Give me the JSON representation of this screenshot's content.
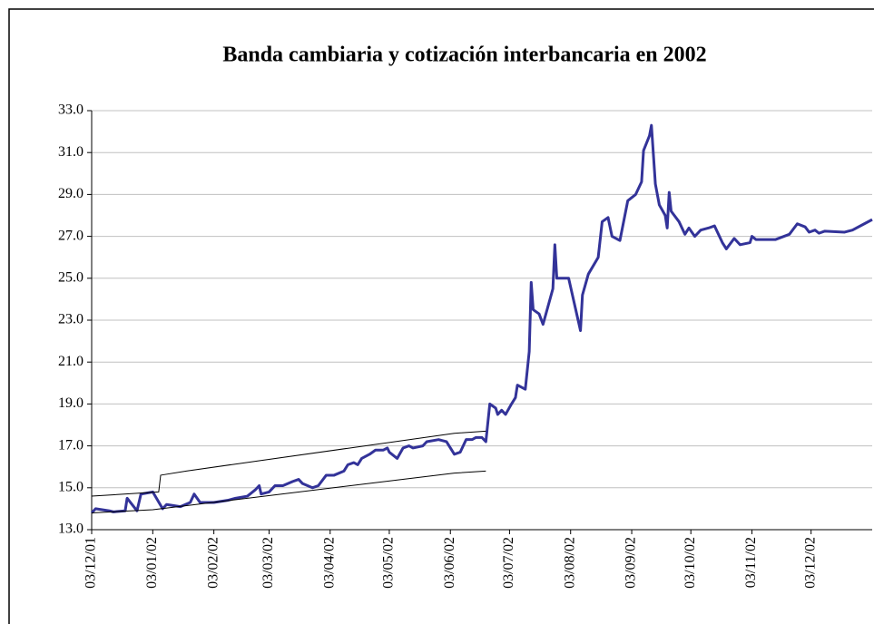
{
  "chart_data": {
    "type": "line",
    "title": "Banda cambiaria y cotización interbancaria en 2002",
    "xlim": [
      "2001-12-03",
      "2003-01-03"
    ],
    "ylim": [
      13,
      33
    ],
    "grid": true,
    "yticks": [
      {
        "value": 13,
        "label": "13.0"
      },
      {
        "value": 15,
        "label": "15.0"
      },
      {
        "value": 17,
        "label": "17.0"
      },
      {
        "value": 19,
        "label": "19.0"
      },
      {
        "value": 21,
        "label": "21.0"
      },
      {
        "value": 23,
        "label": "23.0"
      },
      {
        "value": 25,
        "label": "25.0"
      },
      {
        "value": 27,
        "label": "27.0"
      },
      {
        "value": 29,
        "label": "29.0"
      },
      {
        "value": 31,
        "label": "31.0"
      },
      {
        "value": 33,
        "label": "33.0"
      }
    ],
    "xticks": [
      {
        "value": "2001-12-03",
        "label": "03/12/01"
      },
      {
        "value": "2002-01-03",
        "label": "03/01/02"
      },
      {
        "value": "2002-02-03",
        "label": "03/02/02"
      },
      {
        "value": "2002-03-03",
        "label": "03/03/02"
      },
      {
        "value": "2002-04-03",
        "label": "03/04/02"
      },
      {
        "value": "2002-05-03",
        "label": "03/05/02"
      },
      {
        "value": "2002-06-03",
        "label": "03/06/02"
      },
      {
        "value": "2002-07-03",
        "label": "03/07/02"
      },
      {
        "value": "2002-08-03",
        "label": "03/08/02"
      },
      {
        "value": "2002-09-03",
        "label": "03/09/02"
      },
      {
        "value": "2002-10-03",
        "label": "03/10/02"
      },
      {
        "value": "2002-11-03",
        "label": "03/11/02"
      },
      {
        "value": "2002-12-03",
        "label": "03/12/02"
      }
    ],
    "series": [
      {
        "color": "#333399",
        "width": 3,
        "x": [
          "2001-12-03",
          "2001-12-05",
          "2001-12-12",
          "2001-12-14",
          "2001-12-20",
          "2001-12-21",
          "2001-12-26",
          "2001-12-28",
          "2002-01-03",
          "2002-01-08",
          "2002-01-10",
          "2002-01-17",
          "2002-01-22",
          "2002-01-24",
          "2002-01-27",
          "2002-02-03",
          "2002-02-10",
          "2002-02-14",
          "2002-02-20",
          "2002-02-24",
          "2002-02-26",
          "2002-02-27",
          "2002-03-03",
          "2002-03-06",
          "2002-03-10",
          "2002-03-15",
          "2002-03-18",
          "2002-03-20",
          "2002-03-25",
          "2002-03-28",
          "2002-04-01",
          "2002-04-05",
          "2002-04-10",
          "2002-04-12",
          "2002-04-15",
          "2002-04-17",
          "2002-04-19",
          "2002-04-23",
          "2002-04-26",
          "2002-04-30",
          "2002-05-02",
          "2002-05-03",
          "2002-05-07",
          "2002-05-10",
          "2002-05-13",
          "2002-05-15",
          "2002-05-20",
          "2002-05-22",
          "2002-05-28",
          "2002-06-01",
          "2002-06-05",
          "2002-06-08",
          "2002-06-11",
          "2002-06-14",
          "2002-06-16",
          "2002-06-19",
          "2002-06-21",
          "2002-06-23",
          "2002-06-26",
          "2002-06-27",
          "2002-06-29",
          "2002-07-01",
          "2002-07-04",
          "2002-07-06",
          "2002-07-07",
          "2002-07-11",
          "2002-07-13",
          "2002-07-14",
          "2002-07-15",
          "2002-07-18",
          "2002-07-20",
          "2002-07-25",
          "2002-07-26",
          "2002-07-27",
          "2002-08-02",
          "2002-08-08",
          "2002-08-09",
          "2002-08-12",
          "2002-08-17",
          "2002-08-19",
          "2002-08-22",
          "2002-08-24",
          "2002-08-28",
          "2002-09-01",
          "2002-09-05",
          "2002-09-08",
          "2002-09-09",
          "2002-09-12",
          "2002-09-13",
          "2002-09-15",
          "2002-09-17",
          "2002-09-20",
          "2002-09-21",
          "2002-09-22",
          "2002-09-23",
          "2002-09-27",
          "2002-09-30",
          "2002-10-02",
          "2002-10-05",
          "2002-10-08",
          "2002-10-12",
          "2002-10-15",
          "2002-10-19",
          "2002-10-21",
          "2002-10-25",
          "2002-10-28",
          "2002-11-02",
          "2002-11-03",
          "2002-11-05",
          "2002-11-15",
          "2002-11-22",
          "2002-11-26",
          "2002-11-30",
          "2002-12-02",
          "2002-12-05",
          "2002-12-07",
          "2002-12-10",
          "2002-12-20",
          "2002-12-24",
          "2002-12-30",
          "2003-01-03"
        ],
        "values": [
          13.8,
          14.0,
          13.9,
          13.85,
          13.9,
          14.5,
          13.9,
          14.7,
          14.8,
          14.0,
          14.2,
          14.1,
          14.3,
          14.7,
          14.3,
          14.3,
          14.4,
          14.5,
          14.6,
          14.9,
          15.1,
          14.7,
          14.8,
          15.1,
          15.1,
          15.3,
          15.4,
          15.2,
          15.0,
          15.1,
          15.6,
          15.6,
          15.8,
          16.1,
          16.2,
          16.1,
          16.4,
          16.6,
          16.8,
          16.8,
          16.9,
          16.7,
          16.4,
          16.9,
          17.0,
          16.9,
          17.0,
          17.2,
          17.3,
          17.2,
          16.6,
          16.7,
          17.3,
          17.3,
          17.4,
          17.4,
          17.2,
          19.0,
          18.8,
          18.5,
          18.7,
          18.5,
          19.0,
          19.3,
          19.9,
          19.7,
          21.5,
          24.8,
          23.5,
          23.3,
          22.8,
          24.5,
          26.6,
          25.0,
          25.0,
          22.5,
          24.2,
          25.2,
          26.0,
          27.7,
          27.9,
          27.0,
          26.8,
          28.7,
          29.0,
          29.6,
          31.1,
          31.8,
          32.3,
          29.5,
          28.5,
          28.0,
          27.4,
          29.1,
          28.2,
          27.7,
          27.1,
          27.4,
          27.0,
          27.3,
          27.4,
          27.5,
          26.7,
          26.4,
          26.9,
          26.6,
          26.7,
          27.0,
          26.85,
          26.85,
          27.1,
          27.6,
          27.45,
          27.2,
          27.3,
          27.15,
          27.25,
          27.2,
          27.3,
          27.6,
          27.8
        ]
      },
      {
        "color": "#000000",
        "width": 1,
        "x": [
          "2001-12-03",
          "2002-01-06",
          "2002-01-07",
          "2002-01-20",
          "2002-06-05",
          "2002-06-21"
        ],
        "values": [
          14.6,
          14.8,
          15.6,
          15.8,
          17.6,
          17.7
        ]
      },
      {
        "color": "#000000",
        "width": 1,
        "x": [
          "2001-12-03",
          "2002-01-03",
          "2002-06-05",
          "2002-06-21"
        ],
        "values": [
          13.8,
          13.95,
          15.7,
          15.8
        ]
      }
    ]
  }
}
